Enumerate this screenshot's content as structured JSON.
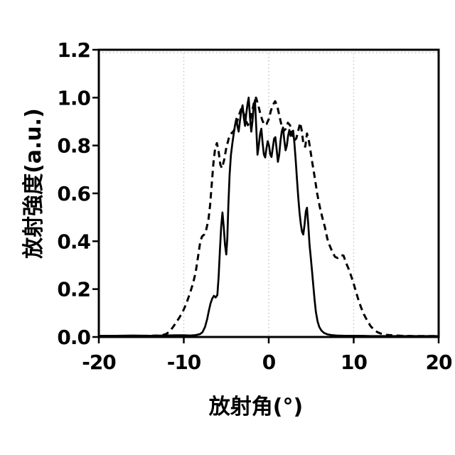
{
  "figure": {
    "background": "#ffffff"
  },
  "chart_data": {
    "type": "line",
    "title": "",
    "xlabel": "放射角(°)",
    "ylabel": "放射強度(a.u.)",
    "xlim": [
      -20,
      20
    ],
    "ylim": [
      0,
      1.2
    ],
    "legend": "none",
    "axis_color": "#000000",
    "x_ticks": {
      "values": [
        -20,
        -10,
        0,
        10,
        20
      ],
      "labels": [
        "-20",
        "-10",
        "0",
        "10",
        "20"
      ]
    },
    "y_ticks": {
      "values": [
        0,
        0.2,
        0.4,
        0.6,
        0.8,
        1.0,
        1.2
      ],
      "labels": [
        "0.0",
        "0.2",
        "0.4",
        "0.6",
        "0.8",
        "1.0",
        "1.2"
      ]
    },
    "gridlines": {
      "vertical_x": [
        -10,
        0,
        10
      ],
      "horizontal_y": [
        1.2
      ],
      "style": "dotted",
      "color": "#c4c4c4"
    },
    "series": [
      {
        "name": "dashed-curve",
        "style": "dashed",
        "color": "#000000",
        "width": 3,
        "dash": [
          9,
          6
        ],
        "points": [
          [
            -20,
            0.004
          ],
          [
            -18,
            0.004
          ],
          [
            -16,
            0.004
          ],
          [
            -14,
            0.005
          ],
          [
            -13,
            0.006
          ],
          [
            -12.5,
            0.008
          ],
          [
            -12.1,
            0.012
          ],
          [
            -11.7,
            0.022
          ],
          [
            -11.3,
            0.04
          ],
          [
            -10.9,
            0.06
          ],
          [
            -10.5,
            0.082
          ],
          [
            -10.1,
            0.107
          ],
          [
            -9.7,
            0.14
          ],
          [
            -9.3,
            0.18
          ],
          [
            -8.9,
            0.225
          ],
          [
            -8.6,
            0.27
          ],
          [
            -8.3,
            0.34
          ],
          [
            -8.05,
            0.4
          ],
          [
            -7.85,
            0.42
          ],
          [
            -7.6,
            0.428
          ],
          [
            -7.35,
            0.45
          ],
          [
            -7.1,
            0.49
          ],
          [
            -6.9,
            0.55
          ],
          [
            -6.7,
            0.64
          ],
          [
            -6.5,
            0.73
          ],
          [
            -6.3,
            0.79
          ],
          [
            -6.1,
            0.81
          ],
          [
            -5.9,
            0.775
          ],
          [
            -5.7,
            0.72
          ],
          [
            -5.5,
            0.705
          ],
          [
            -5.25,
            0.74
          ],
          [
            -5.0,
            0.79
          ],
          [
            -4.7,
            0.83
          ],
          [
            -4.4,
            0.85
          ],
          [
            -4.1,
            0.862
          ],
          [
            -3.8,
            0.89
          ],
          [
            -3.5,
            0.928
          ],
          [
            -3.2,
            0.958
          ],
          [
            -2.95,
            0.935
          ],
          [
            -2.7,
            0.905
          ],
          [
            -2.45,
            0.885
          ],
          [
            -2.2,
            0.905
          ],
          [
            -1.95,
            0.945
          ],
          [
            -1.7,
            0.985
          ],
          [
            -1.5,
            1.0
          ],
          [
            -1.25,
            0.97
          ],
          [
            -1.0,
            0.935
          ],
          [
            -0.75,
            0.905
          ],
          [
            -0.5,
            0.885
          ],
          [
            -0.25,
            0.89
          ],
          [
            0,
            0.91
          ],
          [
            0.25,
            0.945
          ],
          [
            0.5,
            0.97
          ],
          [
            0.75,
            0.985
          ],
          [
            1.0,
            0.965
          ],
          [
            1.25,
            0.925
          ],
          [
            1.5,
            0.885
          ],
          [
            1.75,
            0.86
          ],
          [
            2.0,
            0.87
          ],
          [
            2.25,
            0.895
          ],
          [
            2.5,
            0.885
          ],
          [
            2.75,
            0.85
          ],
          [
            3.0,
            0.82
          ],
          [
            3.25,
            0.83
          ],
          [
            3.5,
            0.865
          ],
          [
            3.7,
            0.895
          ],
          [
            3.9,
            0.86
          ],
          [
            4.1,
            0.8
          ],
          [
            4.3,
            0.795
          ],
          [
            4.5,
            0.85
          ],
          [
            4.7,
            0.825
          ],
          [
            4.9,
            0.78
          ],
          [
            5.1,
            0.735
          ],
          [
            5.4,
            0.67
          ],
          [
            5.7,
            0.6
          ],
          [
            6.0,
            0.545
          ],
          [
            6.3,
            0.5
          ],
          [
            6.6,
            0.46
          ],
          [
            6.9,
            0.41
          ],
          [
            7.2,
            0.38
          ],
          [
            7.5,
            0.355
          ],
          [
            7.8,
            0.335
          ],
          [
            8.1,
            0.33
          ],
          [
            8.5,
            0.342
          ],
          [
            8.8,
            0.34
          ],
          [
            9.1,
            0.31
          ],
          [
            9.4,
            0.285
          ],
          [
            9.7,
            0.255
          ],
          [
            10.0,
            0.222
          ],
          [
            10.3,
            0.185
          ],
          [
            10.6,
            0.15
          ],
          [
            10.9,
            0.12
          ],
          [
            11.2,
            0.095
          ],
          [
            11.6,
            0.068
          ],
          [
            12.0,
            0.045
          ],
          [
            12.4,
            0.03
          ],
          [
            12.8,
            0.02
          ],
          [
            13.3,
            0.013
          ],
          [
            13.8,
            0.009
          ],
          [
            14.5,
            0.007
          ],
          [
            15.5,
            0.005
          ],
          [
            17,
            0.004
          ],
          [
            18.5,
            0.004
          ],
          [
            20,
            0.004
          ]
        ]
      },
      {
        "name": "solid-curve",
        "style": "solid",
        "color": "#000000",
        "width": 2.7,
        "points": [
          [
            -20,
            0.005
          ],
          [
            -18,
            0.005
          ],
          [
            -16,
            0.006
          ],
          [
            -14,
            0.005
          ],
          [
            -12.5,
            0.006
          ],
          [
            -11,
            0.007
          ],
          [
            -10,
            0.007
          ],
          [
            -9.2,
            0.006
          ],
          [
            -8.6,
            0.008
          ],
          [
            -8.1,
            0.012
          ],
          [
            -7.8,
            0.02
          ],
          [
            -7.5,
            0.042
          ],
          [
            -7.25,
            0.075
          ],
          [
            -7.05,
            0.11
          ],
          [
            -6.85,
            0.14
          ],
          [
            -6.65,
            0.16
          ],
          [
            -6.45,
            0.172
          ],
          [
            -6.25,
            0.165
          ],
          [
            -6.05,
            0.175
          ],
          [
            -5.9,
            0.25
          ],
          [
            -5.75,
            0.36
          ],
          [
            -5.6,
            0.46
          ],
          [
            -5.45,
            0.52
          ],
          [
            -5.3,
            0.46
          ],
          [
            -5.15,
            0.385
          ],
          [
            -5.0,
            0.345
          ],
          [
            -4.88,
            0.41
          ],
          [
            -4.75,
            0.55
          ],
          [
            -4.6,
            0.68
          ],
          [
            -4.45,
            0.76
          ],
          [
            -4.28,
            0.81
          ],
          [
            -4.12,
            0.85
          ],
          [
            -3.97,
            0.885
          ],
          [
            -3.82,
            0.912
          ],
          [
            -3.68,
            0.88
          ],
          [
            -3.54,
            0.858
          ],
          [
            -3.4,
            0.9
          ],
          [
            -3.25,
            0.94
          ],
          [
            -3.08,
            0.968
          ],
          [
            -2.93,
            0.915
          ],
          [
            -2.79,
            0.882
          ],
          [
            -2.65,
            0.93
          ],
          [
            -2.5,
            0.972
          ],
          [
            -2.36,
            1.0
          ],
          [
            -2.21,
            0.92
          ],
          [
            -2.06,
            0.858
          ],
          [
            -1.92,
            0.9
          ],
          [
            -1.77,
            0.962
          ],
          [
            -1.62,
            0.99
          ],
          [
            -1.47,
            0.878
          ],
          [
            -1.32,
            0.762
          ],
          [
            -1.17,
            0.8
          ],
          [
            -1.02,
            0.848
          ],
          [
            -0.87,
            0.87
          ],
          [
            -0.72,
            0.81
          ],
          [
            -0.57,
            0.762
          ],
          [
            -0.42,
            0.75
          ],
          [
            -0.27,
            0.788
          ],
          [
            -0.12,
            0.818
          ],
          [
            0.03,
            0.8
          ],
          [
            0.18,
            0.762
          ],
          [
            0.33,
            0.752
          ],
          [
            0.48,
            0.79
          ],
          [
            0.63,
            0.828
          ],
          [
            0.78,
            0.835
          ],
          [
            0.93,
            0.785
          ],
          [
            1.08,
            0.732
          ],
          [
            1.23,
            0.76
          ],
          [
            1.38,
            0.818
          ],
          [
            1.53,
            0.858
          ],
          [
            1.68,
            0.875
          ],
          [
            1.83,
            0.822
          ],
          [
            1.98,
            0.78
          ],
          [
            2.13,
            0.8
          ],
          [
            2.28,
            0.84
          ],
          [
            2.43,
            0.865
          ],
          [
            2.58,
            0.84
          ],
          [
            2.73,
            0.858
          ],
          [
            2.88,
            0.862
          ],
          [
            3.02,
            0.81
          ],
          [
            3.17,
            0.74
          ],
          [
            3.32,
            0.66
          ],
          [
            3.47,
            0.585
          ],
          [
            3.62,
            0.52
          ],
          [
            3.77,
            0.472
          ],
          [
            3.92,
            0.44
          ],
          [
            4.07,
            0.428
          ],
          [
            4.22,
            0.47
          ],
          [
            4.37,
            0.525
          ],
          [
            4.5,
            0.54
          ],
          [
            4.65,
            0.47
          ],
          [
            4.8,
            0.385
          ],
          [
            4.95,
            0.33
          ],
          [
            5.1,
            0.275
          ],
          [
            5.25,
            0.215
          ],
          [
            5.4,
            0.155
          ],
          [
            5.55,
            0.105
          ],
          [
            5.75,
            0.065
          ],
          [
            5.95,
            0.042
          ],
          [
            6.2,
            0.027
          ],
          [
            6.5,
            0.017
          ],
          [
            6.9,
            0.011
          ],
          [
            7.4,
            0.008
          ],
          [
            8,
            0.006
          ],
          [
            9,
            0.005
          ],
          [
            10.5,
            0.005
          ],
          [
            12,
            0.004
          ],
          [
            14,
            0.004
          ],
          [
            16,
            0.004
          ],
          [
            18,
            0.004
          ],
          [
            20,
            0.004
          ]
        ]
      }
    ]
  }
}
